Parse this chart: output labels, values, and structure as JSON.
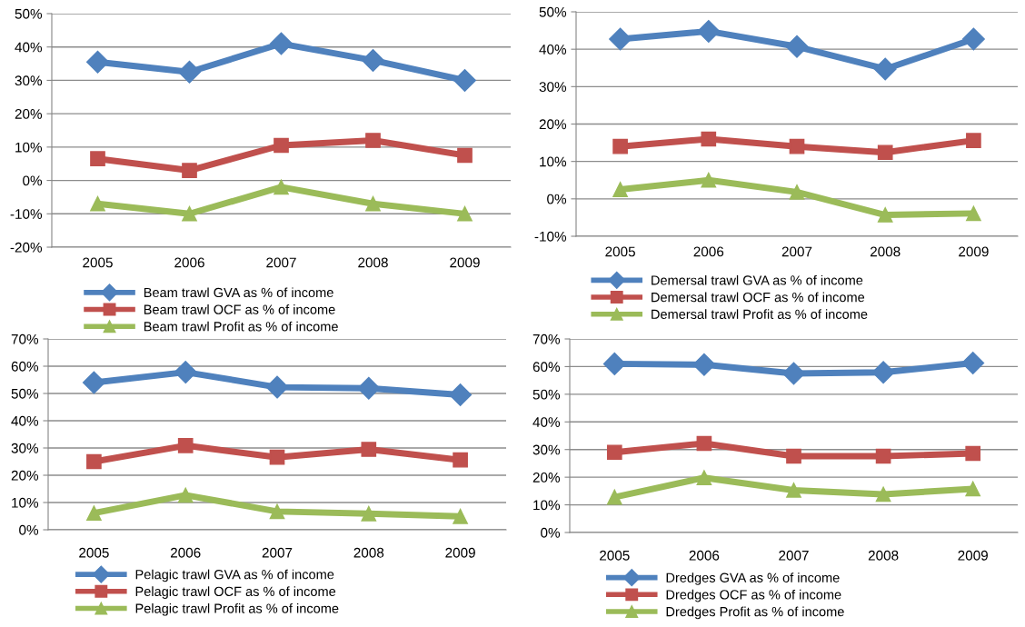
{
  "chart_data": [
    {
      "type": "line",
      "categories": [
        "2005",
        "2006",
        "2007",
        "2008",
        "2009"
      ],
      "ylim": [
        -20,
        50
      ],
      "yticks": [
        {
          "value": -20,
          "label": "-20%"
        },
        {
          "value": -10,
          "label": "-10%"
        },
        {
          "value": 0,
          "label": "0%"
        },
        {
          "value": 10,
          "label": "10%"
        },
        {
          "value": 20,
          "label": "20%"
        },
        {
          "value": 30,
          "label": "30%"
        },
        {
          "value": 40,
          "label": "40%"
        },
        {
          "value": 50,
          "label": "50%"
        }
      ],
      "grid": "y",
      "legend": "bottom",
      "line_style": "solid",
      "series": [
        {
          "name": "Beam trawl GVA as % of income",
          "color": "#4f81bd",
          "marker": "diamond",
          "values": [
            35.5,
            32.5,
            41,
            36,
            30
          ]
        },
        {
          "name": "Beam trawl OCF as % of income",
          "color": "#c0504d",
          "marker": "square",
          "values": [
            6.5,
            3,
            10.5,
            12,
            7.5
          ]
        },
        {
          "name": "Beam trawl Profit as % of income",
          "color": "#9bbb59",
          "marker": "triangle",
          "values": [
            -7,
            -10,
            -2,
            -7,
            -10
          ]
        }
      ]
    },
    {
      "type": "line",
      "categories": [
        "2005",
        "2006",
        "2007",
        "2008",
        "2009"
      ],
      "ylim": [
        -10,
        50
      ],
      "yticks": [
        {
          "value": -10,
          "label": "-10%"
        },
        {
          "value": 0,
          "label": "0%"
        },
        {
          "value": 10,
          "label": "10%"
        },
        {
          "value": 20,
          "label": "20%"
        },
        {
          "value": 30,
          "label": "30%"
        },
        {
          "value": 40,
          "label": "40%"
        },
        {
          "value": 50,
          "label": "50%"
        }
      ],
      "grid": "y",
      "legend": "bottom",
      "line_style": "solid",
      "series": [
        {
          "name": "Demersal trawl GVA as % of income",
          "color": "#4f81bd",
          "marker": "diamond",
          "values": [
            42.7,
            44.8,
            40.7,
            34.7,
            42.7
          ]
        },
        {
          "name": "Demersal trawl OCF as % of income",
          "color": "#c0504d",
          "marker": "square",
          "values": [
            14,
            16,
            14,
            12.4,
            15.6
          ]
        },
        {
          "name": "Demersal trawl Profit as % of income",
          "color": "#9bbb59",
          "marker": "triangle",
          "values": [
            2.5,
            5,
            1.8,
            -4.3,
            -3.9
          ]
        }
      ]
    },
    {
      "type": "line",
      "categories": [
        "2005",
        "2006",
        "2007",
        "2008",
        "2009"
      ],
      "ylim": [
        0,
        70
      ],
      "yticks": [
        {
          "value": 0,
          "label": "0%"
        },
        {
          "value": 10,
          "label": "10%"
        },
        {
          "value": 20,
          "label": "20%"
        },
        {
          "value": 30,
          "label": "30%"
        },
        {
          "value": 40,
          "label": "40%"
        },
        {
          "value": 50,
          "label": "50%"
        },
        {
          "value": 60,
          "label": "60%"
        },
        {
          "value": 70,
          "label": "70%"
        }
      ],
      "grid": "y",
      "legend": "bottom",
      "line_style": "solid",
      "series": [
        {
          "name": "Pelagic trawl GVA as % of income",
          "color": "#4f81bd",
          "marker": "diamond",
          "values": [
            54,
            57.8,
            52.3,
            51.9,
            49.5
          ]
        },
        {
          "name": "Pelagic trawl OCF as % of income",
          "color": "#c0504d",
          "marker": "square",
          "values": [
            25,
            30.9,
            26.6,
            29.5,
            25.6
          ]
        },
        {
          "name": "Pelagic trawl Profit as % of income",
          "color": "#9bbb59",
          "marker": "triangle",
          "values": [
            6.1,
            12.7,
            6.7,
            5.9,
            4.9
          ]
        }
      ]
    },
    {
      "type": "line",
      "categories": [
        "2005",
        "2006",
        "2007",
        "2008",
        "2009"
      ],
      "ylim": [
        0,
        70
      ],
      "yticks": [
        {
          "value": 0,
          "label": "0%"
        },
        {
          "value": 10,
          "label": "10%"
        },
        {
          "value": 20,
          "label": "20%"
        },
        {
          "value": 30,
          "label": "30%"
        },
        {
          "value": 40,
          "label": "40%"
        },
        {
          "value": 50,
          "label": "50%"
        },
        {
          "value": 60,
          "label": "60%"
        },
        {
          "value": 70,
          "label": "70%"
        }
      ],
      "grid": "y",
      "legend": "bottom",
      "line_style": "solid",
      "series": [
        {
          "name": "Dredges GVA as % of income",
          "color": "#4f81bd",
          "marker": "diamond",
          "values": [
            61,
            60.7,
            57.5,
            57.9,
            61.3
          ]
        },
        {
          "name": "Dredges OCF as % of income",
          "color": "#c0504d",
          "marker": "square",
          "values": [
            29,
            32.2,
            27.6,
            27.6,
            28.6
          ]
        },
        {
          "name": "Dredges Profit as % of income",
          "color": "#9bbb59",
          "marker": "triangle",
          "values": [
            12.8,
            19.8,
            15.3,
            13.8,
            15.8
          ]
        }
      ]
    }
  ]
}
